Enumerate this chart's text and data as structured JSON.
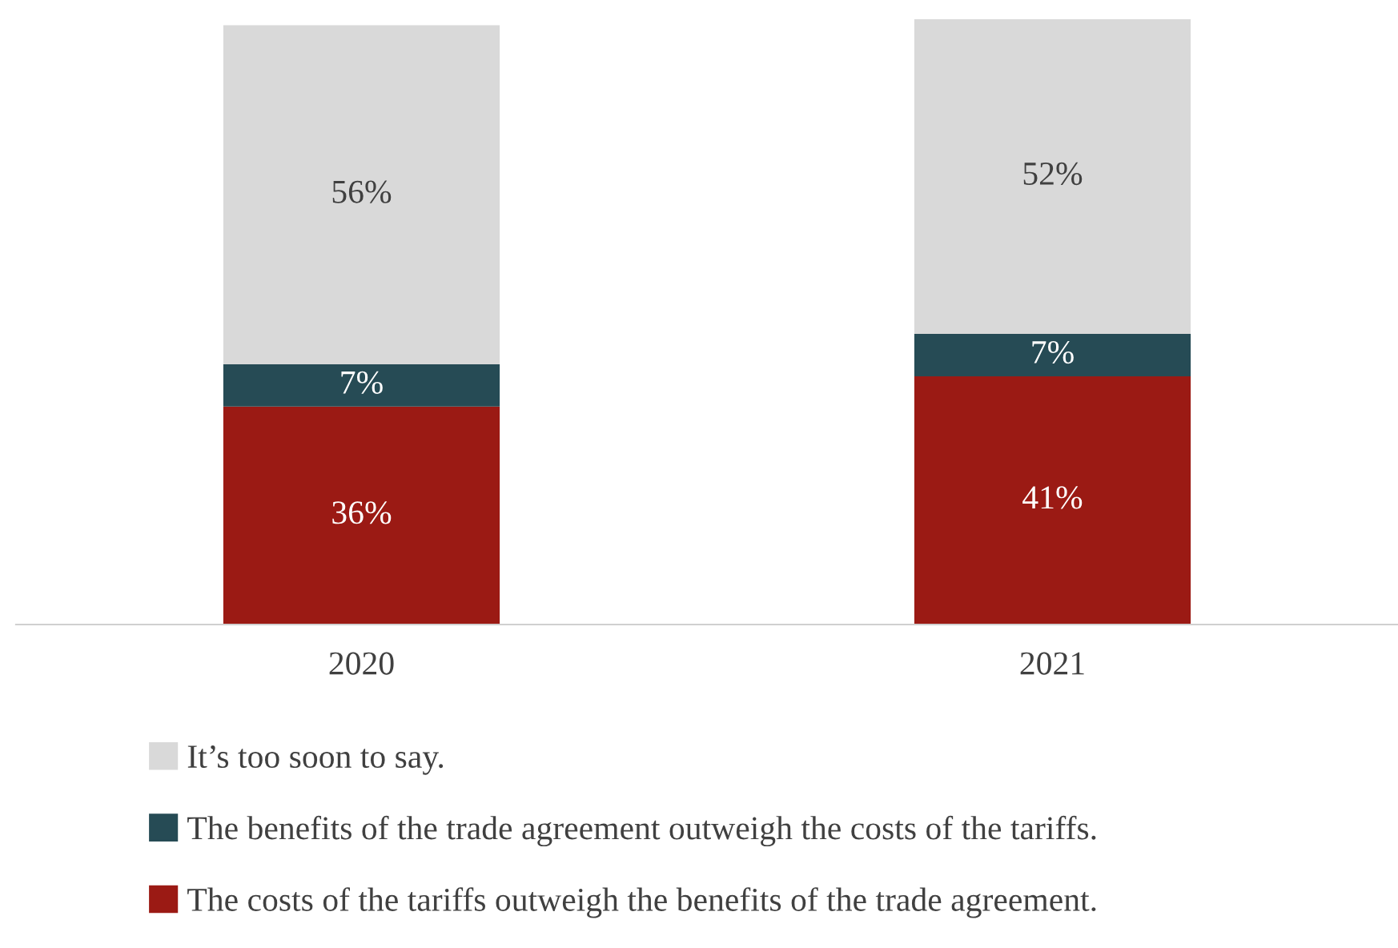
{
  "chart_data": {
    "type": "bar",
    "stacked": true,
    "categories": [
      "2020",
      "2021"
    ],
    "series": [
      {
        "name": "The costs of the tariffs outweigh the benefits of the trade agreement.",
        "color": "#9b1a14",
        "values": [
          36,
          41
        ],
        "value_labels": [
          "36%",
          "41%"
        ]
      },
      {
        "name": "The benefits of the trade agreement outweigh the costs of the tariffs.",
        "color": "#264b55",
        "values": [
          7,
          7
        ],
        "value_labels": [
          "7%",
          "7%"
        ]
      },
      {
        "name": "It’s too soon to say.",
        "color": "#d9d9d9",
        "values": [
          56,
          52
        ],
        "value_labels": [
          "56%",
          "52%"
        ]
      }
    ],
    "legend": "bottom",
    "grid": false
  }
}
